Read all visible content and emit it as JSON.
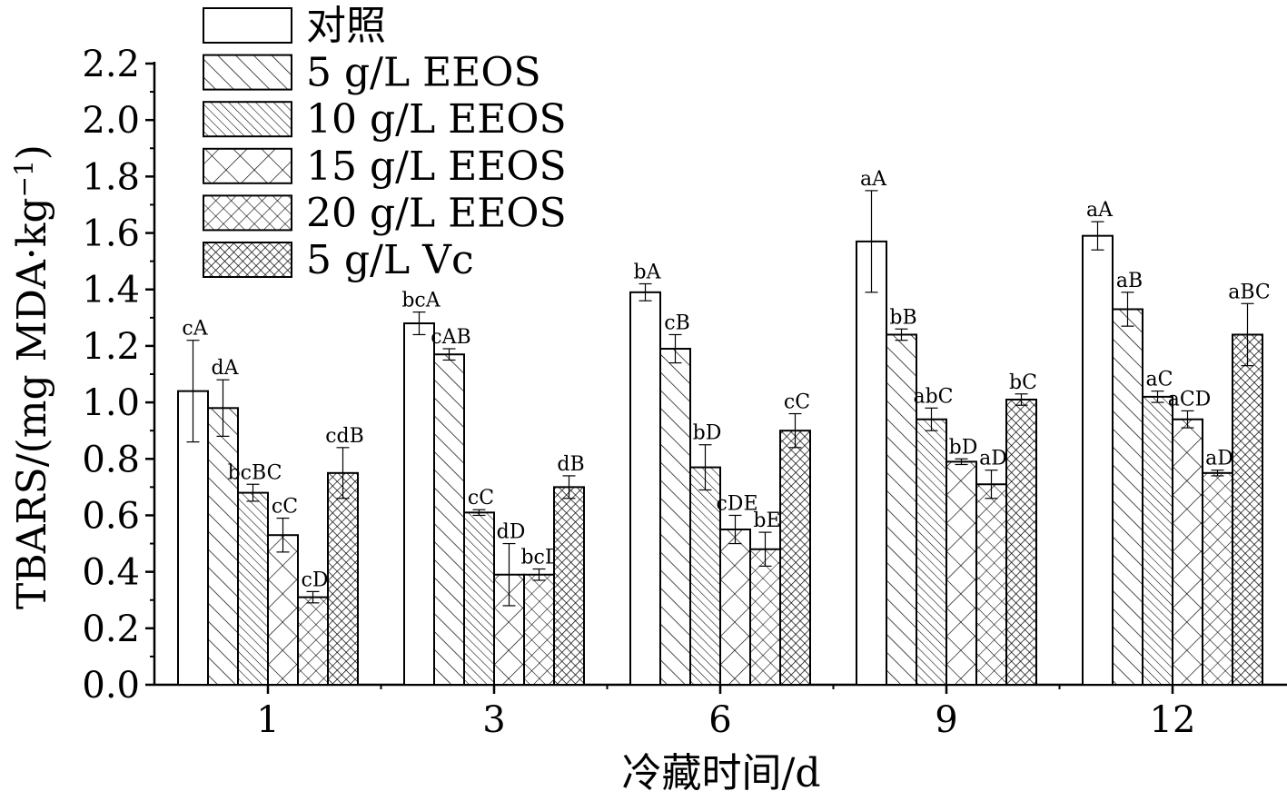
{
  "chart_data": {
    "type": "bar",
    "xlabel": "冷藏时间/d",
    "ylabel_main": "TBARS/(mg MDA·kg",
    "ylabel_sup": "−1",
    "ylabel_end": ")",
    "ylim": [
      0,
      2.2
    ],
    "yticks": [
      "0.0",
      "0.2",
      "0.4",
      "0.6",
      "0.8",
      "1.0",
      "1.2",
      "1.4",
      "1.6",
      "1.8",
      "2.0",
      "2.2"
    ],
    "categories": [
      "1",
      "3",
      "6",
      "9",
      "12"
    ],
    "series": [
      {
        "name": "对照",
        "pattern": "none",
        "values": [
          1.04,
          1.28,
          1.39,
          1.57,
          1.59
        ],
        "errors": [
          0.18,
          0.04,
          0.03,
          0.18,
          0.05
        ],
        "labels": [
          "cA",
          "bcA",
          "bA",
          "aA",
          "aA"
        ]
      },
      {
        "name": "5 g/L EEOS",
        "pattern": "diag-wide",
        "values": [
          0.98,
          1.17,
          1.19,
          1.24,
          1.33
        ],
        "errors": [
          0.1,
          0.02,
          0.05,
          0.02,
          0.06
        ],
        "labels": [
          "dA",
          "cAB",
          "cB",
          "bB",
          "aB"
        ]
      },
      {
        "name": "10 g/L EEOS",
        "pattern": "diag-narrow",
        "values": [
          0.68,
          0.61,
          0.77,
          0.94,
          1.02
        ],
        "errors": [
          0.03,
          0.01,
          0.08,
          0.04,
          0.02
        ],
        "labels": [
          "bcBC",
          "cC",
          "bD",
          "abC",
          "aC"
        ]
      },
      {
        "name": "15 g/L EEOS",
        "pattern": "cross-wide",
        "values": [
          0.53,
          0.39,
          0.55,
          0.79,
          0.94
        ],
        "errors": [
          0.06,
          0.11,
          0.05,
          0.01,
          0.03
        ],
        "labels": [
          "cC",
          "dD",
          "cDE",
          "bD",
          "aCD"
        ]
      },
      {
        "name": "20 g/L EEOS",
        "pattern": "cross-medium",
        "values": [
          0.31,
          0.39,
          0.48,
          0.71,
          0.75
        ],
        "errors": [
          0.02,
          0.02,
          0.06,
          0.05,
          0.01
        ],
        "labels": [
          "cD",
          "bcD",
          "bE",
          "aD",
          "aD"
        ]
      },
      {
        "name": "5 g/L Vc",
        "pattern": "cross-dense",
        "values": [
          0.75,
          0.7,
          0.9,
          1.01,
          1.24
        ],
        "errors": [
          0.09,
          0.04,
          0.06,
          0.02,
          0.11
        ],
        "labels": [
          "cdB",
          "dB",
          "cC",
          "bC",
          "aBC"
        ]
      }
    ],
    "grid": false,
    "legend_position": "top-left"
  }
}
